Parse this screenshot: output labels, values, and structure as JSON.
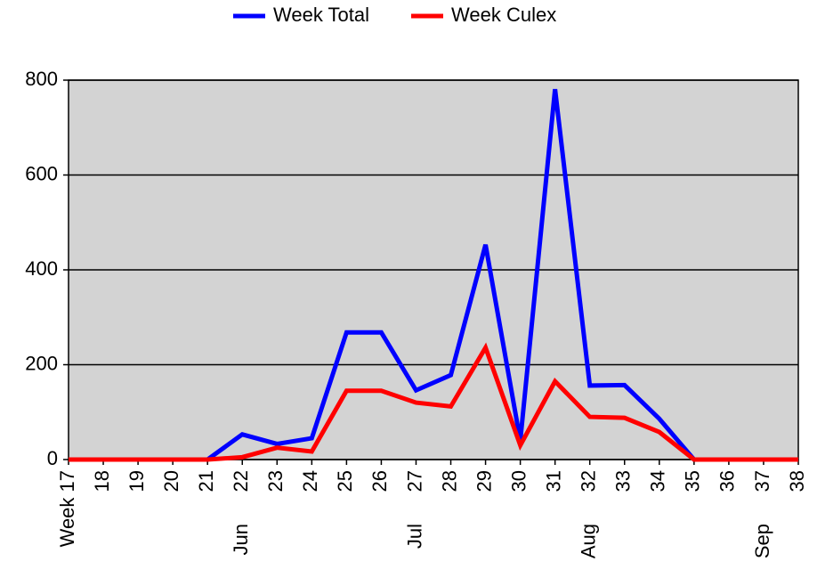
{
  "chart_data": {
    "type": "line",
    "categories": [
      "Week 17",
      "18",
      "19",
      "20",
      "21",
      "22",
      "23",
      "24",
      "25",
      "26",
      "27",
      "28",
      "29",
      "30",
      "31",
      "32",
      "33",
      "34",
      "35",
      "36",
      "37",
      "38"
    ],
    "month_labels": [
      null,
      null,
      null,
      null,
      null,
      "Jun",
      null,
      null,
      null,
      null,
      "Jul",
      null,
      null,
      null,
      null,
      "Aug",
      null,
      null,
      null,
      null,
      "Sep",
      null
    ],
    "series": [
      {
        "name": "Week Total",
        "color": "#0000ff",
        "values": [
          0,
          0,
          0,
          0,
          0,
          53,
          33,
          45,
          268,
          268,
          146,
          178,
          453,
          40,
          781,
          156,
          157,
          86,
          0,
          0,
          0,
          0
        ]
      },
      {
        "name": "Week Culex",
        "color": "#ff0000",
        "values": [
          0,
          0,
          0,
          0,
          0,
          5,
          25,
          17,
          145,
          145,
          120,
          112,
          236,
          30,
          165,
          90,
          88,
          58,
          0,
          0,
          0,
          0
        ]
      }
    ],
    "ylim": [
      0,
      800
    ],
    "yticks": [
      0,
      200,
      400,
      600,
      800
    ],
    "grid": true
  }
}
